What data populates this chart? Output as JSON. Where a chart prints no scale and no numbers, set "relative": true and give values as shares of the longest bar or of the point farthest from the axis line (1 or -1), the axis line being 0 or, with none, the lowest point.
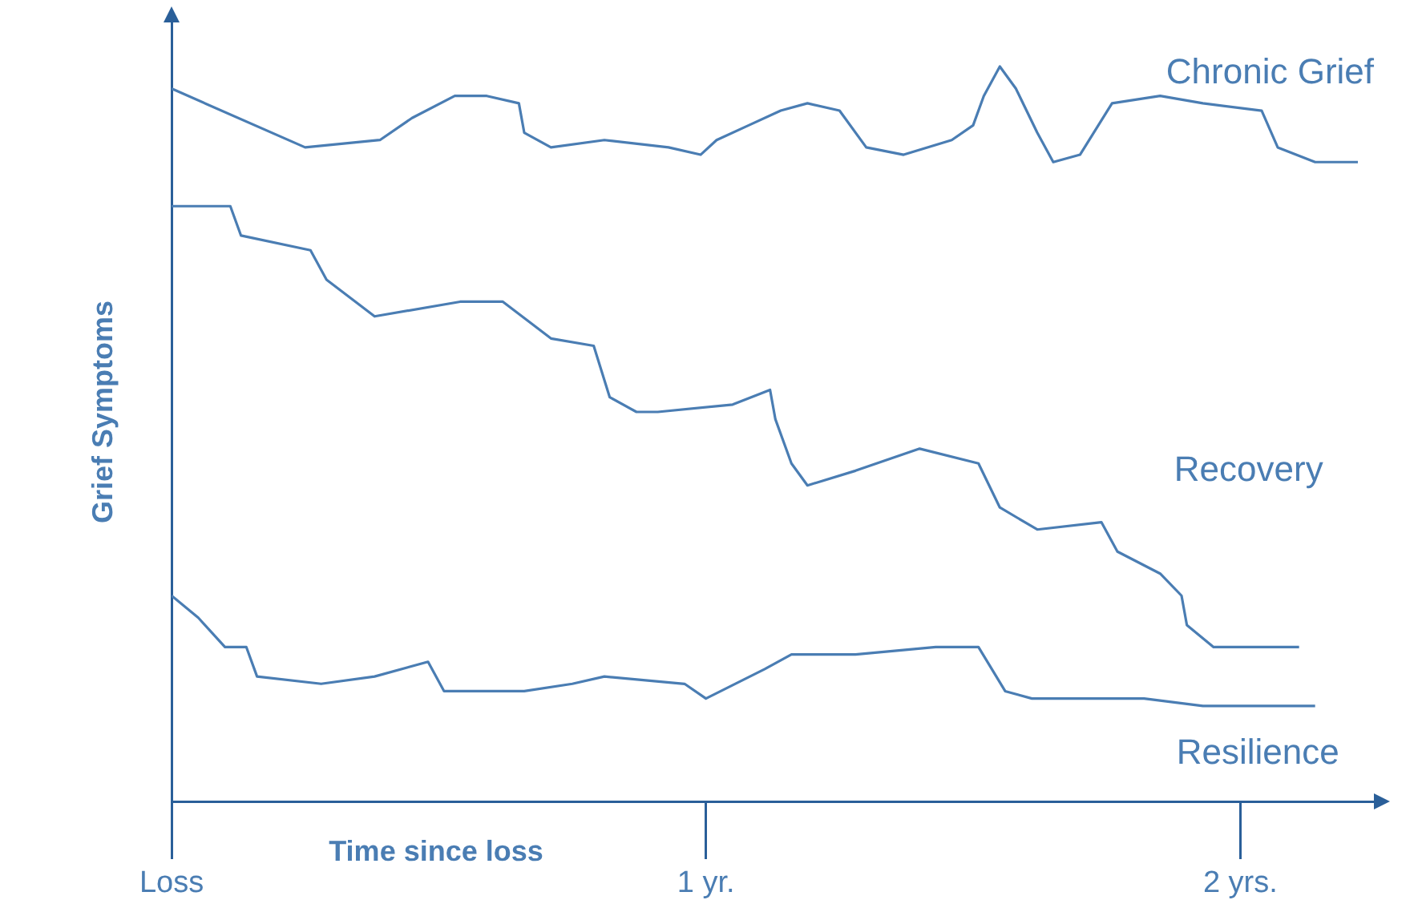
{
  "chart_data": {
    "type": "line",
    "xlabel": "Time since loss",
    "ylabel": "Grief Symptoms",
    "relative": true,
    "xlim": [
      0,
      2.25
    ],
    "xticks": [
      {
        "value": 0,
        "label": "Loss"
      },
      {
        "value": 1,
        "label": "1 yr."
      },
      {
        "value": 2,
        "label": "2 yrs."
      }
    ],
    "grid": false,
    "legend": false,
    "marker": "none",
    "line_style": "solid",
    "series": [
      {
        "name": "Chronic Grief",
        "color": "#4a7db3",
        "x": [
          0,
          0.25,
          0.39,
          0.45,
          0.53,
          0.59,
          0.65,
          0.66,
          0.71,
          0.81,
          0.93,
          0.99,
          1.02,
          1.08,
          1.14,
          1.19,
          1.25,
          1.3,
          1.37,
          1.46,
          1.5,
          1.52,
          1.55,
          1.58,
          1.62,
          1.65,
          1.7,
          1.76,
          1.85,
          1.93,
          2.04,
          2.07,
          2.14,
          2.22
        ],
        "values": [
          0.97,
          0.89,
          0.9,
          0.93,
          0.96,
          0.96,
          0.95,
          0.91,
          0.89,
          0.9,
          0.89,
          0.88,
          0.9,
          0.92,
          0.94,
          0.95,
          0.94,
          0.89,
          0.88,
          0.9,
          0.92,
          0.96,
          1,
          0.97,
          0.91,
          0.87,
          0.88,
          0.95,
          0.96,
          0.95,
          0.94,
          0.89,
          0.87,
          0.87
        ]
      },
      {
        "name": "Recovery",
        "color": "#4a7db3",
        "x": [
          0,
          0.11,
          0.13,
          0.26,
          0.29,
          0.38,
          0.54,
          0.62,
          0.71,
          0.79,
          0.82,
          0.87,
          0.91,
          1.05,
          1.12,
          1.13,
          1.16,
          1.19,
          1.28,
          1.4,
          1.51,
          1.55,
          1.62,
          1.74,
          1.77,
          1.85,
          1.89,
          1.9,
          1.95,
          2.11
        ],
        "values": [
          0.81,
          0.81,
          0.77,
          0.75,
          0.71,
          0.66,
          0.68,
          0.68,
          0.63,
          0.62,
          0.55,
          0.53,
          0.53,
          0.54,
          0.56,
          0.52,
          0.46,
          0.43,
          0.45,
          0.48,
          0.46,
          0.4,
          0.37,
          0.38,
          0.34,
          0.31,
          0.28,
          0.24,
          0.21,
          0.21
        ]
      },
      {
        "name": "Resilience",
        "color": "#4a7db3",
        "x": [
          0,
          0.05,
          0.1,
          0.14,
          0.16,
          0.28,
          0.38,
          0.48,
          0.51,
          0.66,
          0.75,
          0.81,
          0.96,
          1,
          1.11,
          1.16,
          1.28,
          1.43,
          1.51,
          1.56,
          1.61,
          1.82,
          1.93,
          2.14
        ],
        "values": [
          0.28,
          0.25,
          0.21,
          0.21,
          0.17,
          0.16,
          0.17,
          0.19,
          0.15,
          0.15,
          0.16,
          0.17,
          0.16,
          0.14,
          0.18,
          0.2,
          0.2,
          0.21,
          0.21,
          0.15,
          0.14,
          0.14,
          0.13,
          0.13
        ]
      }
    ]
  }
}
